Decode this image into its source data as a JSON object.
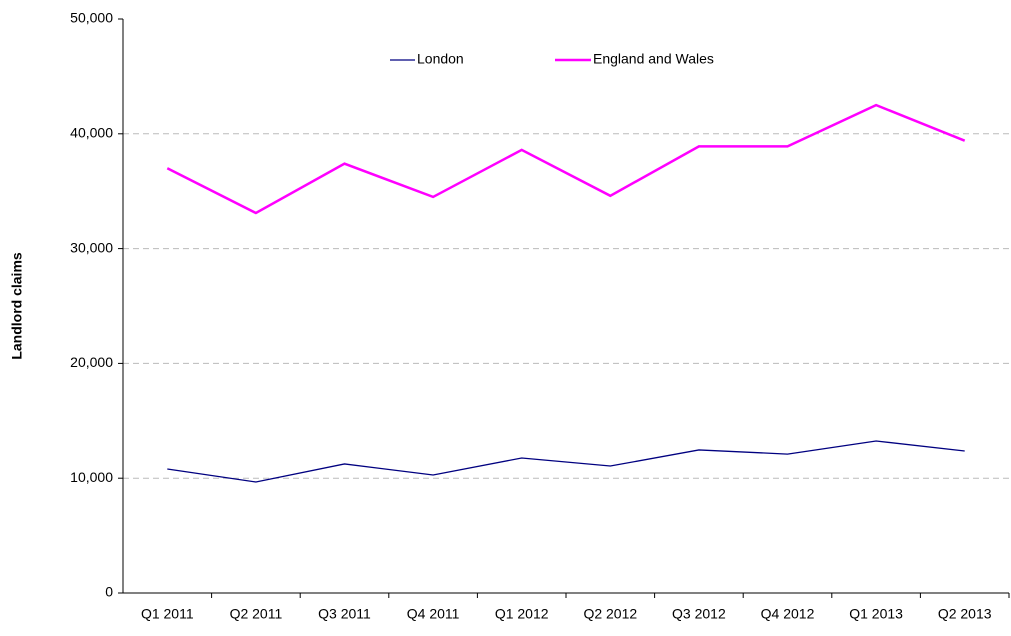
{
  "chart_data": {
    "type": "line",
    "y_label": "Landlord claims",
    "categories": [
      "Q1 2011",
      "Q2 2011",
      "Q3 2011",
      "Q4 2011",
      "Q1 2012",
      "Q2 2012",
      "Q3 2012",
      "Q4 2012",
      "Q1 2013",
      "Q2 2013"
    ],
    "series": [
      {
        "name": "London",
        "color": "#000080",
        "values": [
          10800,
          9670,
          11240,
          10280,
          11760,
          11060,
          12460,
          12100,
          13240,
          12370
        ]
      },
      {
        "name": "England and Wales",
        "color": "#ff00ff",
        "values": [
          37000,
          33100,
          37400,
          34500,
          38600,
          34600,
          38900,
          38900,
          42500,
          39400
        ]
      }
    ],
    "ylim": [
      0,
      50000
    ],
    "yticks": [
      0,
      {
        "value": 10000,
        "label": "10,000"
      },
      {
        "value": 20000,
        "label": "20,000"
      },
      {
        "value": 30000,
        "label": "30,000"
      },
      {
        "value": 40000,
        "label": "40,000"
      },
      {
        "value": 50000,
        "label": "50,000"
      }
    ],
    "grid": true,
    "legend": "top"
  }
}
